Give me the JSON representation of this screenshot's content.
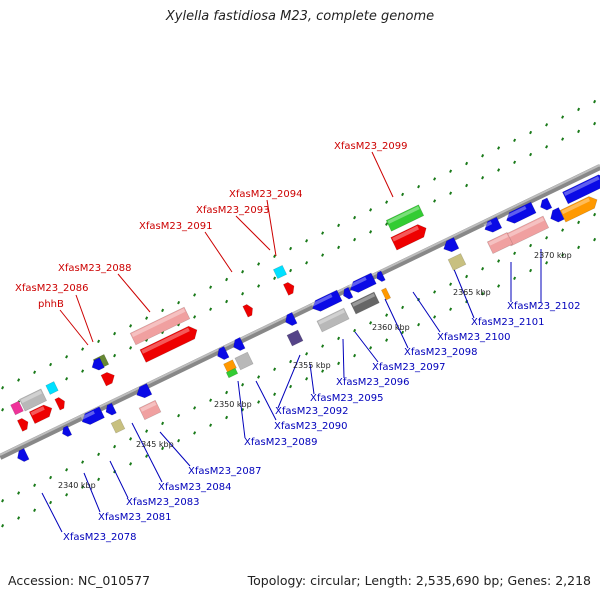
{
  "title": "Xylella fastidiosa M23, complete genome",
  "footer": {
    "accession": "Accession: NC_010577",
    "summary": "Topology: circular; Length: 2,535,690 bp; Genes: 2,218"
  },
  "colors": {
    "backbone": "#888888",
    "tick": "#1a7a1a",
    "label_red": "#cc0000",
    "label_blue": "#0000bb",
    "gene_blue": "#0a0ae6",
    "gene_red": "#ee0000",
    "gene_pink": "#f0a0a0",
    "gene_green": "#33cc33",
    "gene_gray": "#b8b8b8",
    "gene_dark_gray": "#666666",
    "gene_khaki": "#c8c080",
    "gene_cyan": "#00e0ff",
    "gene_orange": "#ff9900",
    "gene_magenta": "#ee3399",
    "gene_purple": "#554488",
    "gene_olive": "#668833"
  },
  "scale_labels": [
    "2340 kbp",
    "2345 kbp",
    "2350 kbp",
    "2355 kbp",
    "2360 kbp",
    "2365 kbp",
    "2370 kbp"
  ],
  "gene_labels_red": [
    "XfasM23_2099",
    "XfasM23_2094",
    "XfasM23_2093",
    "XfasM23_2091",
    "XfasM23_2088",
    "XfasM23_2086",
    "phhB"
  ],
  "gene_labels_blue": [
    "XfasM23_2078",
    "XfasM23_2081",
    "XfasM23_2083",
    "XfasM23_2084",
    "XfasM23_2087",
    "XfasM23_2089",
    "XfasM23_2090",
    "XfasM23_2092",
    "XfasM23_2095",
    "XfasM23_2096",
    "XfasM23_2097",
    "XfasM23_2098",
    "XfasM23_2100",
    "XfasM23_2101",
    "XfasM23_2102"
  ]
}
